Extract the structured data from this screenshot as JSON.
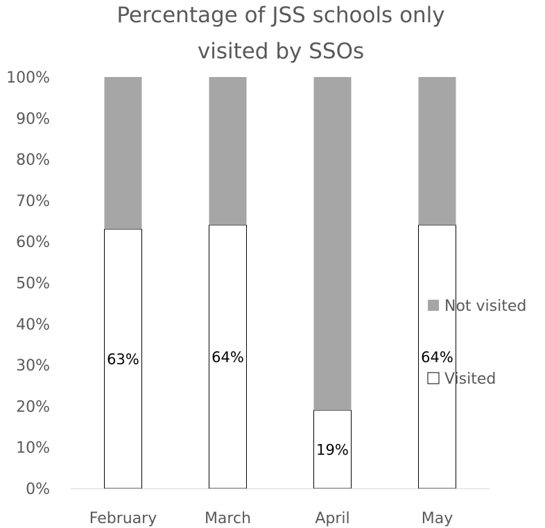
{
  "chart_data": {
    "type": "bar",
    "stacked": true,
    "title_lines": [
      "Percentage of JSS schools only",
      "visited by SSOs"
    ],
    "categories": [
      "February",
      "March",
      "April",
      "May"
    ],
    "series": [
      {
        "name": "Visited",
        "values": [
          63,
          64,
          19,
          64
        ],
        "color": "#ffffff",
        "labels": [
          "63%",
          "64%",
          "19%",
          "64%"
        ]
      },
      {
        "name": "Not visited",
        "values": [
          37,
          36,
          81,
          36
        ],
        "color": "#a6a6a6"
      }
    ],
    "ylim": [
      0,
      100
    ],
    "y_ticks": [
      "0%",
      "10%",
      "20%",
      "30%",
      "40%",
      "50%",
      "60%",
      "70%",
      "80%",
      "90%",
      "100%"
    ],
    "grid": false,
    "legend_position": "right"
  }
}
